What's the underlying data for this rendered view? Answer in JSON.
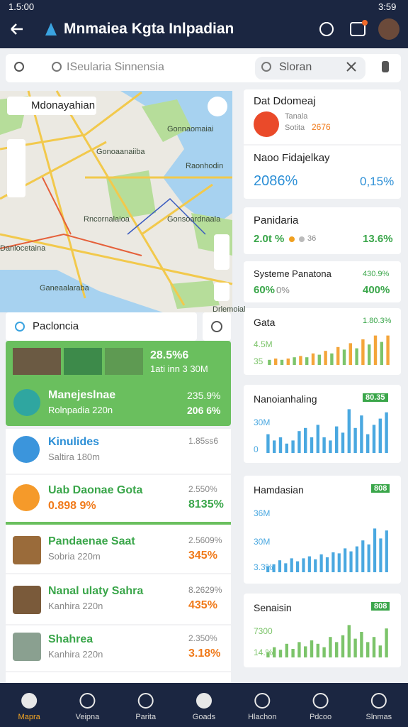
{
  "status_bar": {
    "time": "1.5:00",
    "clock": "3:59"
  },
  "header": {
    "title": "Mnmaiea Kgta Inlpadian"
  },
  "search": {
    "left_placeholder": "ISeularia Sinnensia",
    "right_query": "Sloran"
  },
  "map": {
    "location_label": "Mdonayahian",
    "place_labels": [
      "Gonnaomaiai",
      "Gonoaanaiiba",
      "Raonhodin",
      "Rncornalaioa",
      "Ganeaalaraba",
      "Danlocetaina",
      "Gonsoardnaala",
      "Drlemoial"
    ],
    "bottom_search": "Pacloncia"
  },
  "featured": {
    "stat1": "28.5%6",
    "stat2": "1ati inn 3 30M",
    "title": "Manejeslnae",
    "subtitle": "Rolnpadia 220n",
    "value1": "235.9%",
    "value2": "206 6%"
  },
  "list": [
    {
      "title": "Kinulides",
      "subtitle": "Saltira 180m",
      "value1": "1.85ss6"
    },
    {
      "title": "Uab Daonae Gota",
      "subtitle": "0.898 9%",
      "value1": "2.550%",
      "value2": "8135%"
    },
    {
      "title": "Pandaenae Saat",
      "subtitle": "Sobria 220m",
      "value1": "2.5609%",
      "value2": "345%"
    },
    {
      "title": "Nanal ulaty Sahra",
      "subtitle": "Kanhira 220n",
      "value1": "8.2629%",
      "value2": "435%"
    },
    {
      "title": "Shahrea",
      "subtitle": "Kanhira 220n",
      "value1": "2.350%",
      "value2": "3.18%"
    }
  ],
  "cards": [
    {
      "title": "Dat Ddomeaj",
      "line1": "Tanala",
      "line2": "Sotita",
      "value": "2676"
    },
    {
      "title": "Naoo Fidajelkay",
      "value1": "2086%",
      "value2": "0,15%"
    },
    {
      "title": "Panidaria",
      "value1": "2.0t %",
      "value2": "36",
      "value3": "13.6%"
    },
    {
      "title": "Systeme Panatona",
      "value1": "430.9%",
      "value2": "60%",
      "value3": "0%",
      "value4": "400%"
    },
    {
      "title": "Gata",
      "badge": "1.80.3%",
      "label1": "4.5M",
      "label2": "35",
      "colors": [
        "#7cc46a",
        "#f4a53a"
      ],
      "bars": [
        0.8,
        1,
        0.8,
        1,
        1.2,
        1.4,
        1.2,
        1.8,
        1.6,
        2.2,
        1.8,
        2.8,
        2.4,
        3.4,
        2.6,
        4,
        3.2,
        4.6,
        3.6,
        4.6
      ]
    },
    {
      "title": "Nanoianhaling",
      "badge": "80.35",
      "label1": "30M",
      "label2": "0",
      "colors": [
        "#4aa8e0"
      ],
      "bars": [
        2.4,
        1.6,
        2,
        1.2,
        1.6,
        2.8,
        3.2,
        2,
        3.6,
        2,
        1.6,
        3.4,
        2.6,
        5.6,
        3.2,
        4.8,
        2.4,
        3.6,
        4.4,
        5.2
      ]
    },
    {
      "title": "Hamdasian",
      "badge": "808",
      "label1": "36M",
      "label2": "30M",
      "label3": "3.3%",
      "colors": [
        "#4aa8e0"
      ],
      "bars": [
        0.6,
        0.8,
        1.2,
        0.9,
        1.4,
        1.1,
        1.4,
        1.6,
        1.3,
        1.8,
        1.5,
        2,
        1.9,
        2.4,
        2.1,
        2.6,
        3.2,
        2.8,
        4.4,
        3.4,
        4.2
      ]
    },
    {
      "title": "Senaisin",
      "badge": "808",
      "label1": "7300",
      "label2": "14.%",
      "colors": [
        "#7cc46a"
      ],
      "bars": [
        0.6,
        1.2,
        0.9,
        1.6,
        1,
        1.8,
        1.3,
        2,
        1.6,
        1.2,
        2.4,
        1.8,
        2.6,
        3.8,
        2.2,
        3,
        1.8,
        2.4,
        1.4,
        3.4
      ]
    }
  ],
  "bottom_nav": [
    "Mapra",
    "Veipna",
    "Parita",
    "Goads",
    "Hlachon",
    "Pdcoo",
    "Slnmas"
  ]
}
